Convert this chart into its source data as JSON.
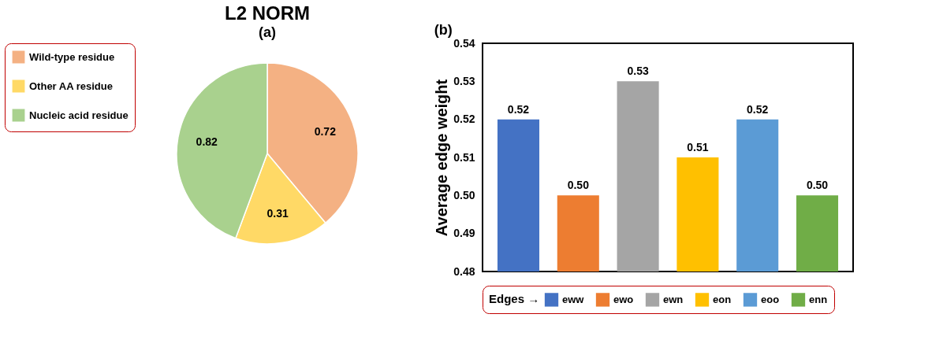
{
  "chart_data": [
    {
      "type": "pie",
      "title": "L2 NORM",
      "annotations": [
        "(a)"
      ],
      "categories": [
        "Wild-type residue",
        "Other AA residue",
        "Nucleic acid residue"
      ],
      "values": [
        0.72,
        0.31,
        0.82
      ],
      "colors": [
        "#f4b183",
        "#ffd966",
        "#a9d18e"
      ],
      "data_labels": true,
      "legend": "left"
    },
    {
      "type": "bar",
      "annotations": [
        "(b)"
      ],
      "ylabel": "Average edge weight",
      "legend_title": "Edges →",
      "categories": [
        null,
        null,
        null,
        null,
        null,
        null
      ],
      "stacked": true,
      "series": [
        {
          "name": "eww",
          "color": "#4472c4",
          "values": [
            0.52,
            null,
            null,
            null,
            null,
            null
          ],
          "value_labels": [
            "0.52",
            null,
            null,
            null,
            null,
            null
          ]
        },
        {
          "name": "ewo",
          "color": "#ed7d31",
          "values": [
            null,
            0.5,
            null,
            null,
            null,
            null
          ],
          "value_labels": [
            null,
            "0.50",
            null,
            null,
            null,
            null
          ]
        },
        {
          "name": "ewn",
          "color": "#a5a5a5",
          "values": [
            null,
            null,
            0.53,
            null,
            null,
            null
          ],
          "value_labels": [
            null,
            null,
            "0.53",
            null,
            null,
            null
          ]
        },
        {
          "name": "eon",
          "color": "#ffc000",
          "values": [
            null,
            null,
            null,
            0.51,
            null,
            null
          ],
          "value_labels": [
            null,
            null,
            null,
            "0.51",
            null,
            null
          ]
        },
        {
          "name": "eoo",
          "color": "#5b9bd5",
          "values": [
            null,
            null,
            null,
            null,
            0.52,
            null
          ],
          "value_labels": [
            null,
            null,
            null,
            null,
            "0.52",
            null
          ]
        },
        {
          "name": "enn",
          "color": "#70ad47",
          "values": [
            null,
            null,
            null,
            null,
            null,
            0.5
          ],
          "value_labels": [
            null,
            null,
            null,
            null,
            null,
            "0.50"
          ]
        }
      ],
      "ylim": [
        0.48,
        0.54
      ],
      "yticks": [
        {
          "value": 0.48,
          "label": "0.48"
        },
        {
          "value": 0.49,
          "label": "0.49"
        },
        {
          "value": 0.5,
          "label": "0.50"
        },
        {
          "value": 0.51,
          "label": "0.51"
        },
        {
          "value": 0.52,
          "label": "0.52"
        },
        {
          "value": 0.53,
          "label": "0.53"
        },
        {
          "value": 0.54,
          "label": "0.54"
        }
      ],
      "tick_labels": "y",
      "grid": false,
      "legend": "bottom"
    }
  ]
}
